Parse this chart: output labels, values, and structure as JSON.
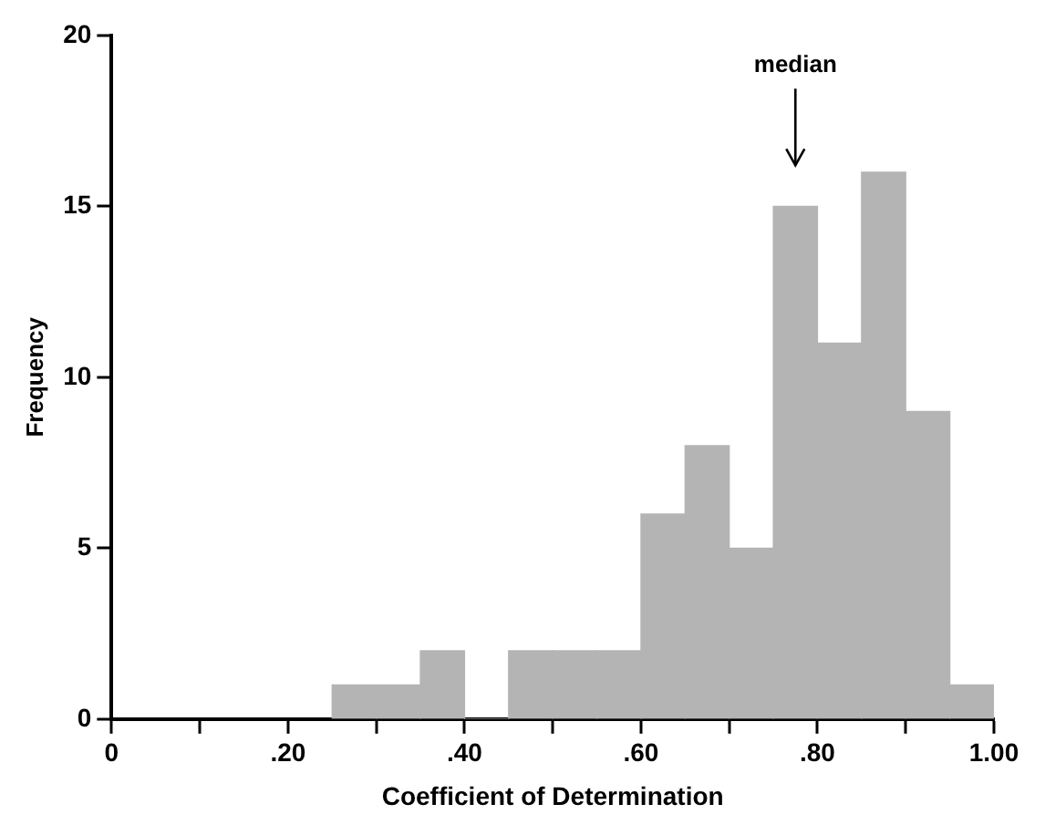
{
  "chart_data": {
    "type": "histogram",
    "xlabel": "Coefficient of Determination",
    "ylabel": "Frequency",
    "bins": [
      0.25,
      0.3,
      0.35,
      0.4,
      0.45,
      0.5,
      0.55,
      0.6,
      0.65,
      0.7,
      0.75,
      0.8,
      0.85,
      0.9,
      0.95,
      1.0
    ],
    "values": [
      1,
      1,
      2,
      0,
      2,
      2,
      2,
      6,
      8,
      5,
      15,
      11,
      16,
      9,
      1
    ],
    "color": "#b4b4b4",
    "xlim": [
      0,
      1
    ],
    "xticks": [
      0,
      {
        "value": 0.1,
        "label": null
      },
      {
        "value": 0.2,
        "label": ".20"
      },
      {
        "value": 0.3,
        "label": null
      },
      {
        "value": 0.4,
        "label": ".40"
      },
      {
        "value": 0.5,
        "label": null
      },
      {
        "value": 0.6,
        "label": ".60"
      },
      {
        "value": 0.7,
        "label": null
      },
      {
        "value": 0.8,
        "label": ".80"
      },
      {
        "value": 0.9,
        "label": null
      },
      {
        "value": 1.0,
        "label": "1.00"
      }
    ],
    "ylim": [
      0,
      20
    ],
    "yticks": [
      0,
      5,
      10,
      15,
      20
    ],
    "annotations": [
      "median"
    ],
    "grid": false,
    "legend": false
  }
}
